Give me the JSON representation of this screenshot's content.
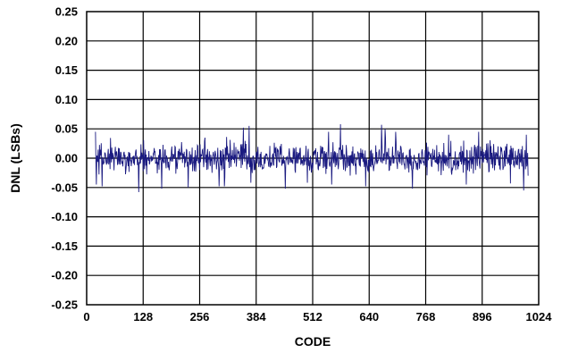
{
  "chart_data": {
    "type": "line",
    "title": "",
    "xlabel": "CODE",
    "ylabel": "DNL (LSBs)",
    "xlim": [
      0,
      1024
    ],
    "ylim": [
      -0.25,
      0.25
    ],
    "x_ticks": [
      "0",
      "128",
      "256",
      "384",
      "512",
      "640",
      "768",
      "896",
      "1024"
    ],
    "y_ticks": [
      "0.25",
      "0.20",
      "0.15",
      "0.10",
      "0.05",
      "0.00",
      "-0.05",
      "-0.10",
      "-0.15",
      "-0.20",
      "-0.25"
    ],
    "grid": true,
    "legend": "none",
    "series_color": "#1a1a80",
    "series": [
      {
        "x_start": 20,
        "x_end": 1000,
        "approx_range": [
          -0.058,
          0.058
        ],
        "typical_amplitude": 0.02,
        "peaks": [
          {
            "x": 20,
            "y": 0.045
          },
          {
            "x": 22,
            "y": -0.045
          },
          {
            "x": 35,
            "y": -0.048
          },
          {
            "x": 118,
            "y": -0.058
          },
          {
            "x": 170,
            "y": -0.052
          },
          {
            "x": 230,
            "y": -0.05
          },
          {
            "x": 268,
            "y": 0.035
          },
          {
            "x": 300,
            "y": -0.048
          },
          {
            "x": 312,
            "y": -0.048
          },
          {
            "x": 355,
            "y": 0.052
          },
          {
            "x": 368,
            "y": 0.055
          },
          {
            "x": 372,
            "y": -0.042
          },
          {
            "x": 450,
            "y": -0.052
          },
          {
            "x": 500,
            "y": -0.042
          },
          {
            "x": 548,
            "y": 0.045
          },
          {
            "x": 555,
            "y": -0.045
          },
          {
            "x": 575,
            "y": 0.058
          },
          {
            "x": 632,
            "y": -0.048
          },
          {
            "x": 668,
            "y": 0.057
          },
          {
            "x": 676,
            "y": 0.05
          },
          {
            "x": 700,
            "y": 0.045
          },
          {
            "x": 738,
            "y": -0.052
          },
          {
            "x": 820,
            "y": 0.04
          },
          {
            "x": 860,
            "y": -0.045
          },
          {
            "x": 888,
            "y": 0.045
          },
          {
            "x": 960,
            "y": -0.043
          },
          {
            "x": 990,
            "y": -0.055
          },
          {
            "x": 996,
            "y": 0.04
          }
        ]
      }
    ]
  }
}
